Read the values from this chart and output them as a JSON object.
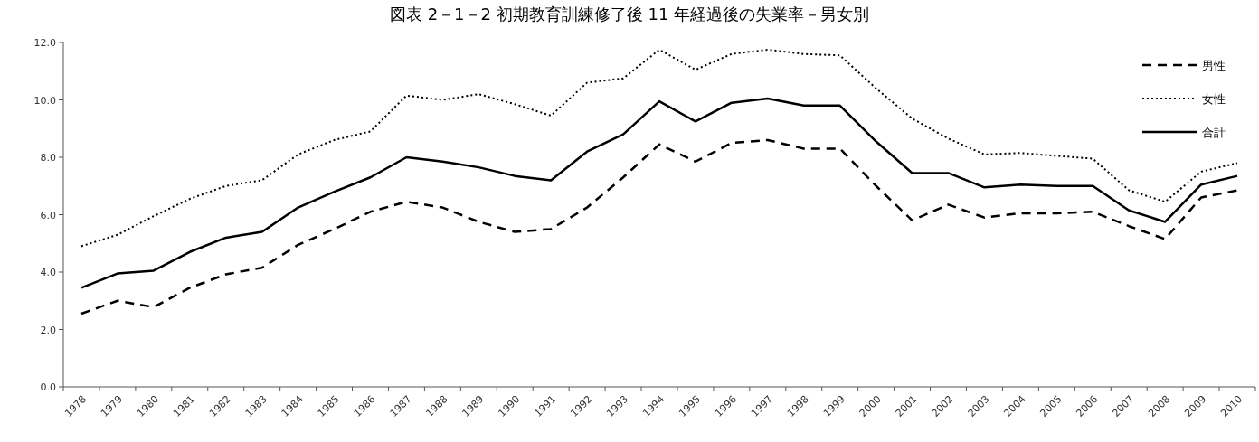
{
  "chart_data": {
    "type": "line",
    "title": "図表 2－1－2 初期教育訓練修了後 11 年経過後の失業率－男女別",
    "categories": [
      "1978",
      "1979",
      "1980",
      "1981",
      "1982",
      "1983",
      "1984",
      "1985",
      "1986",
      "1987",
      "1988",
      "1989",
      "1990",
      "1991",
      "1992",
      "1993",
      "1994",
      "1995",
      "1996",
      "1997",
      "1998",
      "1999",
      "2000",
      "2001",
      "2002",
      "2003",
      "2004",
      "2005",
      "2006",
      "2007",
      "2008",
      "2009",
      "2010"
    ],
    "series": [
      {
        "name": "男性",
        "color": "#000000",
        "line_style": "dashed",
        "values": [
          2.55,
          3.0,
          2.78,
          3.45,
          3.92,
          4.15,
          4.95,
          5.5,
          6.1,
          6.45,
          6.25,
          5.75,
          5.4,
          5.5,
          6.25,
          7.3,
          8.45,
          7.85,
          8.5,
          8.6,
          8.3,
          8.3,
          7.0,
          5.8,
          6.35,
          5.9,
          6.05,
          6.05,
          6.1,
          5.6,
          5.15,
          6.6,
          6.85
        ]
      },
      {
        "name": "女性",
        "color": "#000000",
        "line_style": "dotted",
        "values": [
          4.9,
          5.3,
          5.95,
          6.55,
          7.0,
          7.2,
          8.1,
          8.6,
          8.9,
          10.15,
          10.0,
          10.2,
          9.85,
          9.45,
          10.6,
          10.75,
          11.75,
          11.05,
          11.6,
          11.75,
          11.6,
          11.55,
          10.4,
          9.35,
          8.65,
          8.1,
          8.15,
          8.05,
          7.95,
          6.85,
          6.45,
          7.5,
          7.8
        ]
      },
      {
        "name": "合計",
        "color": "#000000",
        "line_style": "solid",
        "values": [
          3.45,
          3.95,
          4.05,
          4.7,
          5.2,
          5.4,
          6.25,
          6.8,
          7.3,
          8.0,
          7.85,
          7.65,
          7.35,
          7.2,
          8.2,
          8.8,
          9.95,
          9.25,
          9.9,
          10.05,
          9.8,
          9.8,
          8.55,
          7.45,
          7.45,
          6.95,
          7.05,
          7.0,
          7.0,
          6.15,
          5.75,
          7.05,
          7.35
        ]
      }
    ],
    "ylim": [
      0,
      12
    ],
    "yticks": [
      {
        "value": 0,
        "label": "0.0"
      },
      {
        "value": 2,
        "label": "2.0"
      },
      {
        "value": 4,
        "label": "4.0"
      },
      {
        "value": 6,
        "label": "6.0"
      },
      {
        "value": 8,
        "label": "8.0"
      },
      {
        "value": 10,
        "label": "10.0"
      },
      {
        "value": 12,
        "label": "12.0"
      }
    ],
    "grid": false,
    "legend": "top right",
    "marker": "none"
  }
}
